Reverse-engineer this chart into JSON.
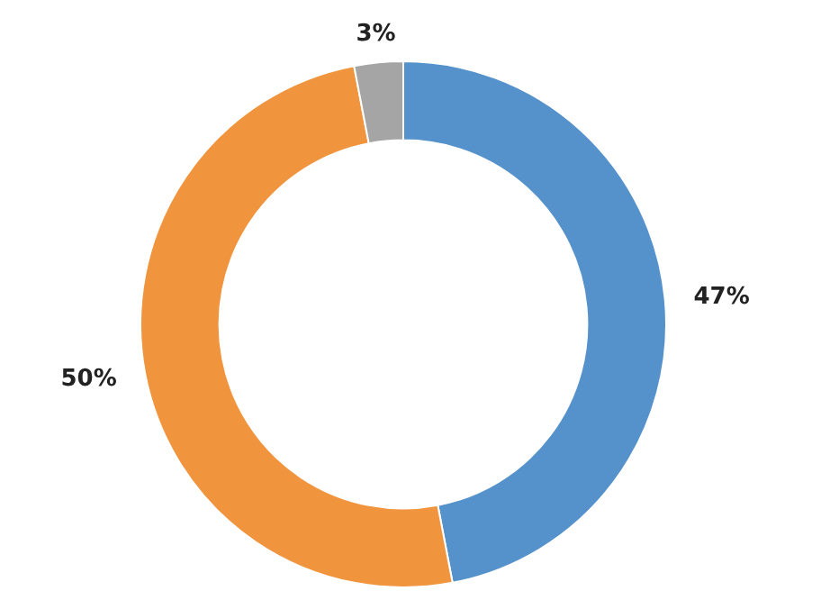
{
  "chart_data": {
    "type": "donut",
    "categories": [
      null,
      null,
      null
    ],
    "values": [
      47,
      50,
      3
    ],
    "colors": [
      "#5592cb",
      "#f0953e",
      "#a5a5a5"
    ],
    "value_labels": [
      "47%",
      "50%",
      "3%"
    ]
  }
}
